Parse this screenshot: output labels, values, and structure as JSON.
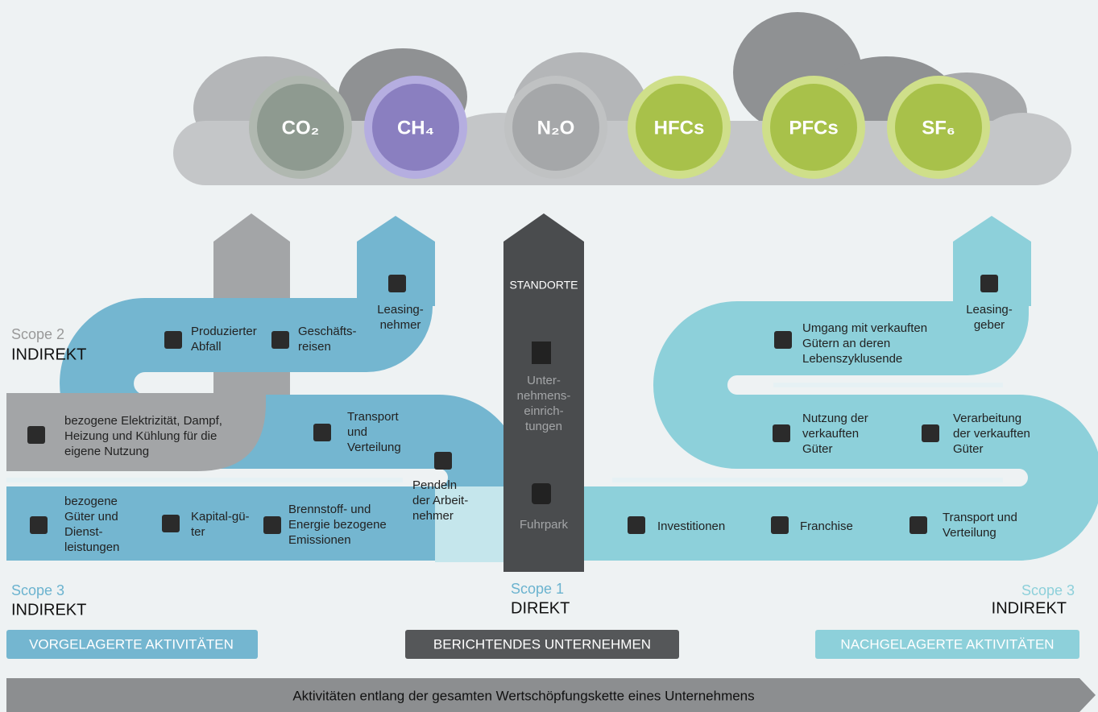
{
  "gases": [
    "CO₂",
    "CH₄",
    "N₂O",
    "HFCs",
    "PFCs",
    "SF₆"
  ],
  "scopes": [
    {
      "scope": "Scope 2",
      "kind": "INDIREKT"
    },
    {
      "scope": "Scope 3",
      "kind": "INDIREKT"
    },
    {
      "scope": "Scope 1",
      "kind": "DIREKT"
    },
    {
      "scope": "Scope 3",
      "kind": "INDIREKT"
    }
  ],
  "center": {
    "header": "STANDORTE",
    "facilities": [
      "Unter-",
      "nehmens-",
      "einrich-",
      "tungen"
    ],
    "fleet": "Fuhrpark"
  },
  "upstream": [
    {
      "lines": [
        "Leasing-",
        "nehmer"
      ]
    },
    {
      "lines": [
        "Produzierter",
        "Abfall"
      ]
    },
    {
      "lines": [
        "Geschäfts-",
        "reisen"
      ]
    },
    {
      "lines": [
        "bezogene Elektrizität, Dampf,",
        "Heizung und Kühlung für die",
        "eigene Nutzung"
      ]
    },
    {
      "lines": [
        "Transport",
        "und",
        "Verteilung"
      ]
    },
    {
      "lines": [
        "Pendeln",
        "der Arbeit-",
        "nehmer"
      ]
    },
    {
      "lines": [
        "bezogene",
        "Güter und",
        "Dienst-",
        "leistungen"
      ]
    },
    {
      "lines": [
        "Kapital-gü-",
        "ter"
      ]
    },
    {
      "lines": [
        "Brennstoff- und",
        "Energie bezogene",
        "Emissionen"
      ]
    }
  ],
  "downstream": [
    {
      "lines": [
        "Leasing-",
        "geber"
      ]
    },
    {
      "lines": [
        "Umgang mit verkauften",
        "Gütern an deren",
        "Lebenszyklusende"
      ]
    },
    {
      "lines": [
        "Nutzung der",
        "verkauften",
        "Güter"
      ]
    },
    {
      "lines": [
        "Verarbeitung",
        "der verkauften",
        "Güter"
      ]
    },
    {
      "lines": [
        "Investitionen"
      ]
    },
    {
      "lines": [
        "Franchise"
      ]
    },
    {
      "lines": [
        "Transport und",
        "Verteilung"
      ]
    }
  ],
  "sections": [
    "VORGELAGERTE AKTIVITÄTEN",
    "BERICHTENDES UNTERNEHMEN",
    "NACHGELAGERTE AKTIVITÄTEN"
  ],
  "footer": "Aktivitäten entlang der gesamten Wertschöpfungskette eines Unternehmens"
}
